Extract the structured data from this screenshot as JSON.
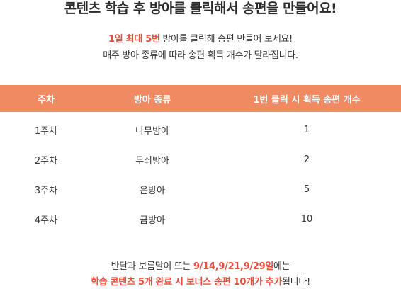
{
  "title": "콘텐츠 학습 후 방아를 클릭해서 송편을 만들어요!",
  "intro": {
    "line1_highlight": "1일 최대 5번",
    "line1_rest": " 방아를 클릭해 송편 만들어 보세요!",
    "line2": "매주 방아 종류에 따라 송편 획득 개수가 달라집니다."
  },
  "table": {
    "headers": [
      "주차",
      "방아 종류",
      "1번 클릭 시 획득 송편 개수"
    ],
    "rows": [
      [
        "1주차",
        "나무방아",
        "1"
      ],
      [
        "2주차",
        "무쇠방아",
        "2"
      ],
      [
        "3주차",
        "은방아",
        "5"
      ],
      [
        "4주차",
        "금방아",
        "10"
      ]
    ]
  },
  "footer": {
    "line1_prefix": "반달과 보름달이 뜨는 ",
    "line1_highlight": "9/14,9/21,9/29일",
    "line1_suffix": "에는",
    "line2_highlight": "학습 콘텐츠 5개 완료 시 보너스 송편 10개가 추가",
    "line2_suffix": "됩니다!"
  },
  "colors": {
    "header_bg": "#ef8a62",
    "highlight": "#e84d3d"
  }
}
